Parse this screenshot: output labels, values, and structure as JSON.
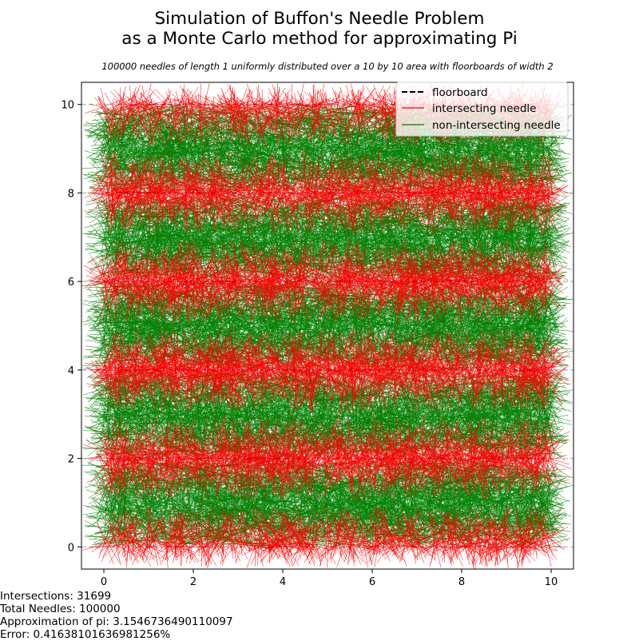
{
  "chart_data": {
    "type": "line",
    "title_line1": "Simulation of Buffon's Needle Problem",
    "title_line2": "as a Monte Carlo method for approximating Pi",
    "subtitle": "100000 needles of length 1 uniformly distributed over a 10 by 10 area with floorboards of width 2",
    "xlabel": "",
    "ylabel": "",
    "xlim": [
      -0.5,
      10.5
    ],
    "ylim": [
      -0.5,
      10.5
    ],
    "xticks": [
      0,
      2,
      4,
      6,
      8,
      10
    ],
    "yticks": [
      0,
      2,
      4,
      6,
      8,
      10
    ],
    "needle_length": 1,
    "area_size": 10,
    "floorboard_width": 2,
    "floorboard_positions": [
      0,
      2,
      4,
      6,
      8,
      10
    ],
    "total_needles": 100000,
    "intersections": 31699,
    "grid": false,
    "legend_position": "top-right",
    "series": [
      {
        "name": "floorboard",
        "style": "dashed",
        "color": "#000000"
      },
      {
        "name": "intersecting needle",
        "style": "solid",
        "color": "#ff0000"
      },
      {
        "name": "non-intersecting needle",
        "style": "solid",
        "color": "#008000"
      }
    ]
  },
  "stats": {
    "intersections": "Intersections: 31699",
    "total_needles": "Total Needles: 100000",
    "approximation": "Approximation of pi: 3.1546736490110097",
    "error": "Error: 0.41638101636981256%"
  }
}
